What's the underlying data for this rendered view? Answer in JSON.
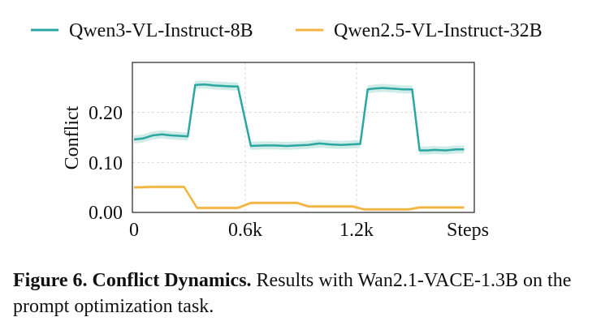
{
  "chart_data": {
    "type": "line",
    "x_label_right": "Steps",
    "ylabel": "Conflict",
    "x_ticks": [
      "0",
      "0.6k",
      "1.2k"
    ],
    "y_ticks": [
      "0.00",
      "0.10",
      "0.20"
    ],
    "xlim": [
      0,
      1800
    ],
    "ylim": [
      0,
      0.3
    ],
    "grid": true,
    "legend_position": "top",
    "series": [
      {
        "name": "Qwen3-VL-Instruct-8B",
        "color": "#2ba6a1",
        "band_color": "#bfe5e1",
        "x": [
          0,
          50,
          100,
          150,
          200,
          250,
          290,
          330,
          380,
          430,
          480,
          530,
          560,
          630,
          700,
          760,
          820,
          880,
          940,
          1000,
          1060,
          1120,
          1170,
          1220,
          1260,
          1300,
          1340,
          1380,
          1420,
          1450,
          1500,
          1540,
          1580,
          1620,
          1680,
          1740,
          1780
        ],
        "y": [
          0.146,
          0.148,
          0.154,
          0.156,
          0.154,
          0.153,
          0.152,
          0.255,
          0.256,
          0.254,
          0.253,
          0.252,
          0.252,
          0.133,
          0.134,
          0.134,
          0.133,
          0.134,
          0.135,
          0.138,
          0.136,
          0.135,
          0.136,
          0.137,
          0.246,
          0.248,
          0.249,
          0.248,
          0.247,
          0.246,
          0.246,
          0.124,
          0.124,
          0.125,
          0.124,
          0.126,
          0.126
        ],
        "band_halfwidth": 0.008
      },
      {
        "name": "Qwen2.5-VL-Instruct-32B",
        "color": "#f3b341",
        "band_color": "#f8d9a0",
        "x": [
          0,
          100,
          200,
          270,
          340,
          400,
          470,
          560,
          630,
          700,
          820,
          880,
          940,
          1000,
          1120,
          1180,
          1240,
          1300,
          1420,
          1480,
          1540,
          1600,
          1700,
          1780
        ],
        "y": [
          0.05,
          0.051,
          0.051,
          0.051,
          0.009,
          0.009,
          0.009,
          0.009,
          0.019,
          0.019,
          0.019,
          0.019,
          0.012,
          0.012,
          0.012,
          0.012,
          0.006,
          0.006,
          0.006,
          0.006,
          0.01,
          0.01,
          0.01,
          0.01
        ],
        "band_halfwidth": 0.003
      }
    ]
  },
  "caption": {
    "figure_label": "Figure 6.",
    "title": "Conflict Dynamics.",
    "text": "Results with Wan2.1-VACE-1.3B on the prompt optimization task."
  }
}
